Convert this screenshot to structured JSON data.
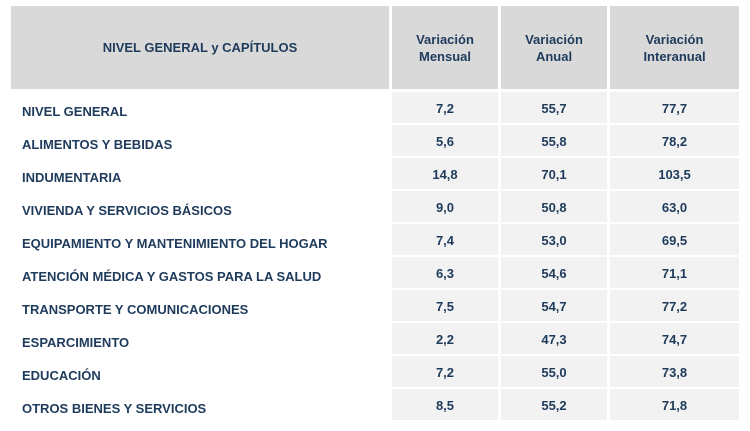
{
  "header": {
    "category": "NIVEL GENERAL y CAPÍTULOS",
    "monthly_line1": "Variación",
    "monthly_line2": "Mensual",
    "annual_line1": "Variación",
    "annual_line2": "Anual",
    "yoy_line1": "Variación",
    "yoy_line2": "Interanual"
  },
  "rows": [
    {
      "label": "NIVEL GENERAL",
      "monthly": "7,2",
      "annual": "55,7",
      "yoy": "77,7"
    },
    {
      "label": "ALIMENTOS Y BEBIDAS",
      "monthly": "5,6",
      "annual": "55,8",
      "yoy": "78,2"
    },
    {
      "label": "INDUMENTARIA",
      "monthly": "14,8",
      "annual": "70,1",
      "yoy": "103,5"
    },
    {
      "label": "VIVIENDA Y SERVICIOS BÁSICOS",
      "monthly": "9,0",
      "annual": "50,8",
      "yoy": "63,0"
    },
    {
      "label": "EQUIPAMIENTO Y MANTENIMIENTO DEL HOGAR",
      "monthly": "7,4",
      "annual": "53,0",
      "yoy": "69,5"
    },
    {
      "label": "ATENCIÓN MÉDICA Y GASTOS PARA LA SALUD",
      "monthly": "6,3",
      "annual": "54,6",
      "yoy": "71,1"
    },
    {
      "label": "TRANSPORTE Y COMUNICACIONES",
      "monthly": "7,5",
      "annual": "54,7",
      "yoy": "77,2"
    },
    {
      "label": "ESPARCIMIENTO",
      "monthly": "2,2",
      "annual": "47,3",
      "yoy": "74,7"
    },
    {
      "label": "EDUCACIÓN",
      "monthly": "7,2",
      "annual": "55,0",
      "yoy": "73,8"
    },
    {
      "label": "OTROS BIENES Y SERVICIOS",
      "monthly": "8,5",
      "annual": "55,2",
      "yoy": "71,8"
    }
  ]
}
